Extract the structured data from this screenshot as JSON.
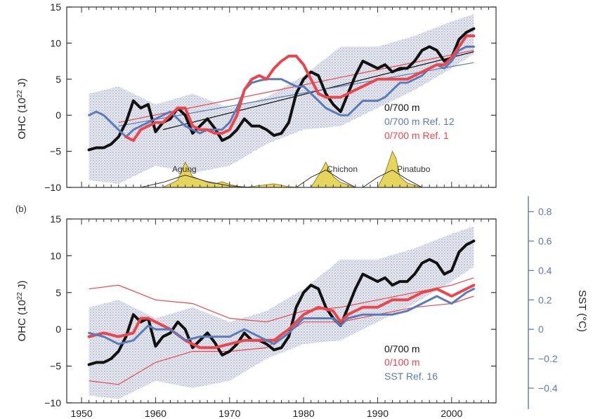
{
  "chart_data": [
    {
      "type": "line",
      "panel_label": "",
      "ylabel": "OHC (10²² J)",
      "ylabel_main": "OHC (10",
      "ylabel_sup": "22",
      "ylabel_end": " J)",
      "xlim": [
        1948,
        2006
      ],
      "ylim": [
        -10,
        15
      ],
      "yticks": [
        -10,
        -5,
        0,
        5,
        10,
        15
      ],
      "ytick_labels": [
        "−10",
        "−5",
        "0",
        "5",
        "10",
        "15"
      ],
      "grid": false,
      "legend_position": "center-right",
      "colors": {
        "black": "#111111",
        "blue": "#5b7bb8",
        "red": "#e8474f",
        "envelope": "#c9cedb",
        "volcano": "#e6d55c"
      },
      "envelope": {
        "x": [
          1951,
          1955,
          1960,
          1965,
          1970,
          1975,
          1980,
          1985,
          1990,
          1995,
          2000,
          2003
        ],
        "upper": [
          3,
          4,
          1.5,
          3,
          1,
          2.5,
          5.5,
          9.5,
          9.5,
          11,
          13,
          14
        ],
        "lower": [
          -9,
          -9.5,
          -7,
          -8,
          -7,
          -4,
          -2,
          -1.5,
          1,
          3.5,
          6.5,
          8.5
        ]
      },
      "series": [
        {
          "name": "0/700 m",
          "color": "#111111",
          "x": [
            1951,
            1952,
            1953,
            1954,
            1955,
            1956,
            1957,
            1958,
            1959,
            1960,
            1961,
            1962,
            1963,
            1964,
            1965,
            1966,
            1967,
            1968,
            1969,
            1970,
            1971,
            1972,
            1973,
            1974,
            1975,
            1976,
            1977,
            1978,
            1979,
            1980,
            1981,
            1982,
            1983,
            1984,
            1985,
            1986,
            1987,
            1988,
            1989,
            1990,
            1991,
            1992,
            1993,
            1994,
            1995,
            1996,
            1997,
            1998,
            1999,
            2000,
            2001,
            2002,
            2003
          ],
          "values": [
            -4.8,
            -4.5,
            -4.5,
            -4,
            -3,
            -1,
            2,
            1,
            1.5,
            -2.3,
            -1,
            -0.5,
            1,
            0,
            -2.5,
            -1.5,
            -0.5,
            -1.8,
            -3.5,
            -3,
            -2,
            -0.5,
            -1.5,
            -1.5,
            -2,
            -2.8,
            -2.5,
            -1,
            3,
            5,
            6,
            5.5,
            3,
            1.5,
            0.5,
            3,
            5.5,
            7.5,
            7,
            6.5,
            7,
            6,
            6.5,
            6.5,
            7.5,
            9,
            9.5,
            9,
            7.5,
            8,
            10.5,
            11.5,
            12
          ]
        },
        {
          "name": "0/700 m Ref. 12",
          "color": "#5b7bb8",
          "x": [
            1951,
            1952,
            1953,
            1954,
            1955,
            1956,
            1957,
            1958,
            1959,
            1960,
            1961,
            1962,
            1963,
            1964,
            1965,
            1966,
            1967,
            1968,
            1969,
            1970,
            1971,
            1972,
            1973,
            1974,
            1975,
            1976,
            1977,
            1978,
            1979,
            1980,
            1981,
            1982,
            1983,
            1984,
            1985,
            1986,
            1987,
            1988,
            1989,
            1990,
            1991,
            1992,
            1993,
            1994,
            1995,
            1996,
            1997,
            1998,
            1999,
            2000,
            2001,
            2002,
            2003
          ],
          "values": [
            0,
            0.5,
            0,
            -1,
            -2,
            -3,
            -2,
            -1.5,
            -1,
            -0.5,
            0,
            0.5,
            -0.5,
            -1.5,
            -2,
            -2.5,
            -2,
            -2,
            -2,
            -1,
            1,
            3.5,
            4.5,
            4.8,
            5,
            5,
            5,
            4.5,
            4,
            4,
            3,
            2,
            1,
            0.5,
            0,
            0,
            1,
            2,
            2,
            2,
            2.5,
            3.5,
            4.5,
            4.5,
            5,
            5.5,
            6.5,
            7,
            6.5,
            7.5,
            9,
            9.5,
            9.5
          ]
        },
        {
          "name": "0/700 m Ref. 1",
          "color": "#e8474f",
          "x": [
            1956,
            1957,
            1958,
            1959,
            1960,
            1961,
            1962,
            1963,
            1964,
            1965,
            1966,
            1967,
            1968,
            1969,
            1970,
            1971,
            1972,
            1973,
            1974,
            1975,
            1976,
            1977,
            1978,
            1979,
            1980,
            1981,
            1982,
            1983,
            1984,
            1985,
            1986,
            1987,
            1988,
            1989,
            1990,
            1991,
            1992,
            1993,
            1994,
            1995,
            1996,
            1997,
            1998,
            1999,
            2000,
            2001,
            2002,
            2003
          ],
          "values": [
            -3,
            -3.5,
            -2,
            -1.5,
            -1,
            -1,
            0,
            1,
            1,
            -1.5,
            -2,
            -2,
            -2.5,
            -2.5,
            -2,
            0,
            3.5,
            5,
            5.5,
            5,
            6.5,
            7.5,
            8.2,
            8.2,
            7,
            5,
            3,
            2.5,
            2.5,
            2.5,
            3,
            3.5,
            4,
            4.5,
            5,
            5,
            5,
            5,
            5,
            5.5,
            6,
            6.5,
            7,
            7,
            8,
            9.5,
            11,
            11
          ]
        }
      ],
      "trend_lines": [
        {
          "color": "#111111",
          "x": [
            1961,
            2003
          ],
          "values": [
            -2,
            8.8
          ]
        },
        {
          "color": "#5b7bb8",
          "x": [
            1955,
            2003
          ],
          "values": [
            -1.5,
            7.3
          ]
        },
        {
          "color": "#e8474f",
          "x": [
            1955,
            2003
          ],
          "values": [
            -1,
            9
          ]
        }
      ],
      "volcanoes": [
        {
          "name": "Agung",
          "x": [
            1961,
            1963,
            1964,
            1965,
            1967,
            1968,
            1969,
            1970,
            1972,
            1976,
            1977,
            1978,
            1980
          ],
          "values": [
            -10,
            -9,
            -6.5,
            -8.5,
            -9.3,
            -9.5,
            -9.2,
            -9.6,
            -10,
            -9.5,
            -9.7,
            -9.9,
            -10
          ]
        },
        {
          "name": "Chichon",
          "x": [
            1981,
            1982.5,
            1983,
            1984,
            1985,
            1987
          ],
          "values": [
            -10,
            -7.5,
            -6.5,
            -8.5,
            -9.3,
            -10
          ]
        },
        {
          "name": "Pinatubo",
          "x": [
            1990,
            1991,
            1992,
            1992.5,
            1993,
            1994,
            1996
          ],
          "values": [
            -10,
            -8,
            -5,
            -6,
            -8.5,
            -9.4,
            -10
          ]
        }
      ],
      "volcano_smooth": [
        {
          "x": [
            1958,
            1961,
            1964,
            1967,
            1970,
            1973
          ],
          "values": [
            -10,
            -9.3,
            -8.3,
            -9.2,
            -9.8,
            -10
          ]
        },
        {
          "x": [
            1979,
            1981,
            1983,
            1985,
            1987
          ],
          "values": [
            -10,
            -8.6,
            -7.6,
            -8.9,
            -10
          ]
        },
        {
          "x": [
            1988,
            1990,
            1992,
            1994,
            1996
          ],
          "values": [
            -10,
            -8.6,
            -7.6,
            -8.9,
            -10
          ]
        }
      ]
    },
    {
      "type": "line",
      "panel_label": "(b)",
      "ylabel": "OHC (10²² J)",
      "ylabel_main": "OHC (10",
      "ylabel_sup": "22",
      "ylabel_end": " J)",
      "y2label": "SST (°C)",
      "xlim": [
        1948,
        2006
      ],
      "xticks": [
        1950,
        1960,
        1970,
        1980,
        1990,
        2000
      ],
      "xtick_labels": [
        "1950",
        "1960",
        "1970",
        "1980",
        "1990",
        "2000"
      ],
      "ylim": [
        -10,
        15
      ],
      "yticks": [
        -10,
        -5,
        0,
        5,
        10,
        15
      ],
      "ytick_labels": [
        "−10",
        "−5",
        "0",
        "5",
        "10",
        "15"
      ],
      "y2ticks": [
        -0.4,
        -0.2,
        0,
        0.2,
        0.4,
        0.6,
        0.8
      ],
      "y2tick_labels": [
        "−0.4",
        "−0.2",
        "0",
        "0.2",
        "0.4",
        "0.6",
        "0.8"
      ],
      "y2_per_ohc": 0.05,
      "grid": false,
      "legend_position": "bottom-right",
      "envelope": {
        "x": [
          1951,
          1955,
          1960,
          1965,
          1970,
          1975,
          1980,
          1985,
          1990,
          1995,
          2000,
          2003
        ],
        "upper": [
          3,
          4,
          1.5,
          3,
          1,
          2.5,
          5.5,
          9.5,
          9.5,
          11,
          13,
          14
        ],
        "lower": [
          -9,
          -9.5,
          -7,
          -8,
          -7,
          -4,
          -2,
          -1.5,
          1,
          3.5,
          6.5,
          8.5
        ]
      },
      "series": [
        {
          "name": "0/700 m",
          "color": "#111111",
          "x": [
            1951,
            1952,
            1953,
            1954,
            1955,
            1956,
            1957,
            1958,
            1959,
            1960,
            1961,
            1962,
            1963,
            1964,
            1965,
            1966,
            1967,
            1968,
            1969,
            1970,
            1971,
            1972,
            1973,
            1974,
            1975,
            1976,
            1977,
            1978,
            1979,
            1980,
            1981,
            1982,
            1983,
            1984,
            1985,
            1986,
            1987,
            1988,
            1989,
            1990,
            1991,
            1992,
            1993,
            1994,
            1995,
            1996,
            1997,
            1998,
            1999,
            2000,
            2001,
            2002,
            2003
          ],
          "values": [
            -4.8,
            -4.5,
            -4.5,
            -4,
            -3,
            -1,
            2,
            1,
            1.5,
            -2.3,
            -1,
            -0.5,
            1,
            0,
            -2.5,
            -1.5,
            -0.5,
            -1.8,
            -3.5,
            -3,
            -2,
            -0.5,
            -1.5,
            -1.5,
            -2,
            -2.8,
            -2.5,
            -1,
            3,
            5,
            6,
            5.5,
            3,
            1.5,
            0.5,
            3,
            5.5,
            7.5,
            7,
            6.5,
            7,
            6,
            6.5,
            6.5,
            7.5,
            9,
            9.5,
            9,
            7.5,
            8,
            10.5,
            11.5,
            12
          ]
        },
        {
          "name": "0/100 m",
          "color": "#e8474f",
          "x": [
            1951,
            1953,
            1955,
            1957,
            1958,
            1959,
            1960,
            1962,
            1964,
            1966,
            1968,
            1970,
            1972,
            1974,
            1976,
            1978,
            1980,
            1982,
            1984,
            1985,
            1986,
            1988,
            1990,
            1992,
            1994,
            1996,
            1998,
            2000,
            2002,
            2003
          ],
          "values": [
            -1,
            -0.5,
            -1,
            -0.5,
            1.5,
            1.5,
            1,
            0,
            -1.5,
            -2.5,
            -2.5,
            -2,
            -1.5,
            -1.5,
            -1.5,
            0,
            2,
            3,
            2.5,
            1,
            2,
            3,
            3,
            4,
            4,
            5,
            5.5,
            4.5,
            5.5,
            6
          ]
        },
        {
          "name": "SST Ref. 16",
          "color": "#5b7bb8",
          "x": [
            1951,
            1953,
            1955,
            1957,
            1958,
            1959,
            1960,
            1962,
            1964,
            1966,
            1968,
            1970,
            1972,
            1974,
            1976,
            1978,
            1980,
            1982,
            1984,
            1985,
            1986,
            1988,
            1990,
            1992,
            1994,
            1996,
            1998,
            2000,
            2002,
            2003
          ],
          "values": [
            -0.5,
            -1,
            -2,
            -1.5,
            -0.5,
            0.5,
            0,
            0,
            -1.5,
            -1,
            -1,
            -1,
            0,
            -1,
            -2,
            -0.5,
            1.5,
            1.5,
            1.5,
            0.5,
            1.5,
            2,
            2,
            2,
            2.5,
            3.5,
            4.5,
            3.5,
            5,
            5.5
          ]
        }
      ],
      "bounds_upper": {
        "color": "#e8474f",
        "x": [
          1951,
          1955,
          1960,
          1965,
          1970,
          1975,
          1980,
          1985,
          1990,
          1995,
          2000,
          2003
        ],
        "values": [
          5.5,
          6,
          4,
          3.5,
          1.5,
          1,
          2.5,
          3,
          4,
          5,
          6,
          7
        ]
      },
      "bounds_lower": {
        "color": "#e8474f",
        "x": [
          1951,
          1955,
          1960,
          1965,
          1970,
          1975,
          1980,
          1985,
          1990,
          1995,
          2000,
          2003
        ],
        "values": [
          -7,
          -7.5,
          -4.5,
          -3,
          -3,
          -2.5,
          1,
          1,
          2,
          3,
          3.5,
          4.5
        ]
      }
    }
  ]
}
